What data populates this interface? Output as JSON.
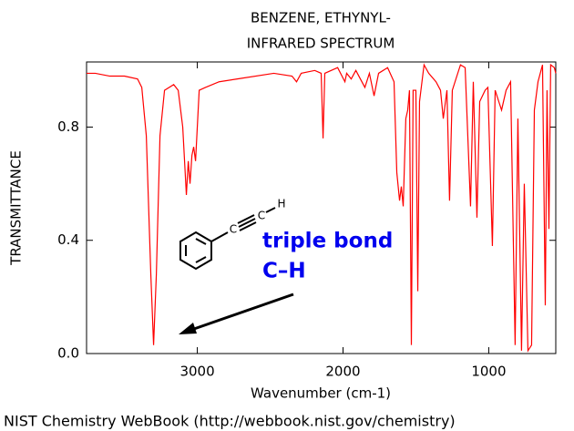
{
  "chart_data": {
    "type": "line",
    "title": "BENZENE, ETHYNYL-",
    "subtitle": "INFRARED SPECTRUM",
    "x_label": "Wavenumber (cm-1)",
    "y_label": "TRANSMITTANCE",
    "footer": "NIST Chemistry WebBook (http://webbook.nist.gov/chemistry)",
    "annotation": {
      "lines": [
        "triple bond",
        "C–H"
      ],
      "color": "#0000ee",
      "molecule_labels": [
        "C",
        "C",
        "H"
      ]
    },
    "xlim": [
      3760,
      540
    ],
    "ylim": [
      0,
      1.03
    ],
    "xticks": [
      3000,
      2000,
      1000
    ],
    "yticks": [
      {
        "value": 0,
        "label": "0.0"
      },
      0.4,
      0.8
    ],
    "grid": false,
    "series": [
      {
        "name": "spectrum",
        "color": "#ff0000",
        "x": [
          3760,
          3700,
          3600,
          3500,
          3410,
          3381,
          3350,
          3319,
          3300,
          3281,
          3256,
          3225,
          3162,
          3131,
          3100,
          3075,
          3062,
          3050,
          3037,
          3025,
          3012,
          2987,
          2944,
          2850,
          2725,
          2475,
          2350,
          2319,
          2287,
          2194,
          2150,
          2137,
          2125,
          2037,
          1987,
          1975,
          1944,
          1912,
          1850,
          1819,
          1787,
          1756,
          1694,
          1650,
          1631,
          1612,
          1600,
          1587,
          1569,
          1556,
          1544,
          1531,
          1519,
          1500,
          1487,
          1475,
          1444,
          1412,
          1362,
          1331,
          1312,
          1287,
          1269,
          1250,
          1194,
          1162,
          1125,
          1106,
          1081,
          1062,
          1025,
          1006,
          975,
          956,
          931,
          912,
          881,
          850,
          819,
          800,
          775,
          756,
          731,
          706,
          687,
          662,
          631,
          612,
          600,
          587,
          575,
          550,
          540
        ],
        "values": [
          0.99,
          0.99,
          0.98,
          0.98,
          0.97,
          0.94,
          0.77,
          0.28,
          0.03,
          0.28,
          0.77,
          0.93,
          0.95,
          0.93,
          0.8,
          0.56,
          0.68,
          0.6,
          0.7,
          0.73,
          0.68,
          0.93,
          0.94,
          0.96,
          0.97,
          0.99,
          0.98,
          0.96,
          0.99,
          1.0,
          0.99,
          0.76,
          0.99,
          1.01,
          0.96,
          0.99,
          0.97,
          1.0,
          0.94,
          0.99,
          0.91,
          0.99,
          1.01,
          0.96,
          0.64,
          0.54,
          0.59,
          0.52,
          0.83,
          0.86,
          0.93,
          0.03,
          0.93,
          0.93,
          0.22,
          0.89,
          1.02,
          0.99,
          0.96,
          0.93,
          0.83,
          0.93,
          0.54,
          0.93,
          1.02,
          1.01,
          0.52,
          0.96,
          0.48,
          0.89,
          0.93,
          0.94,
          0.38,
          0.93,
          0.89,
          0.86,
          0.93,
          0.96,
          0.03,
          0.83,
          0.01,
          0.6,
          0.01,
          0.03,
          0.86,
          0.96,
          1.02,
          0.17,
          0.93,
          0.44,
          1.02,
          1.01,
          0.99
        ]
      }
    ]
  }
}
